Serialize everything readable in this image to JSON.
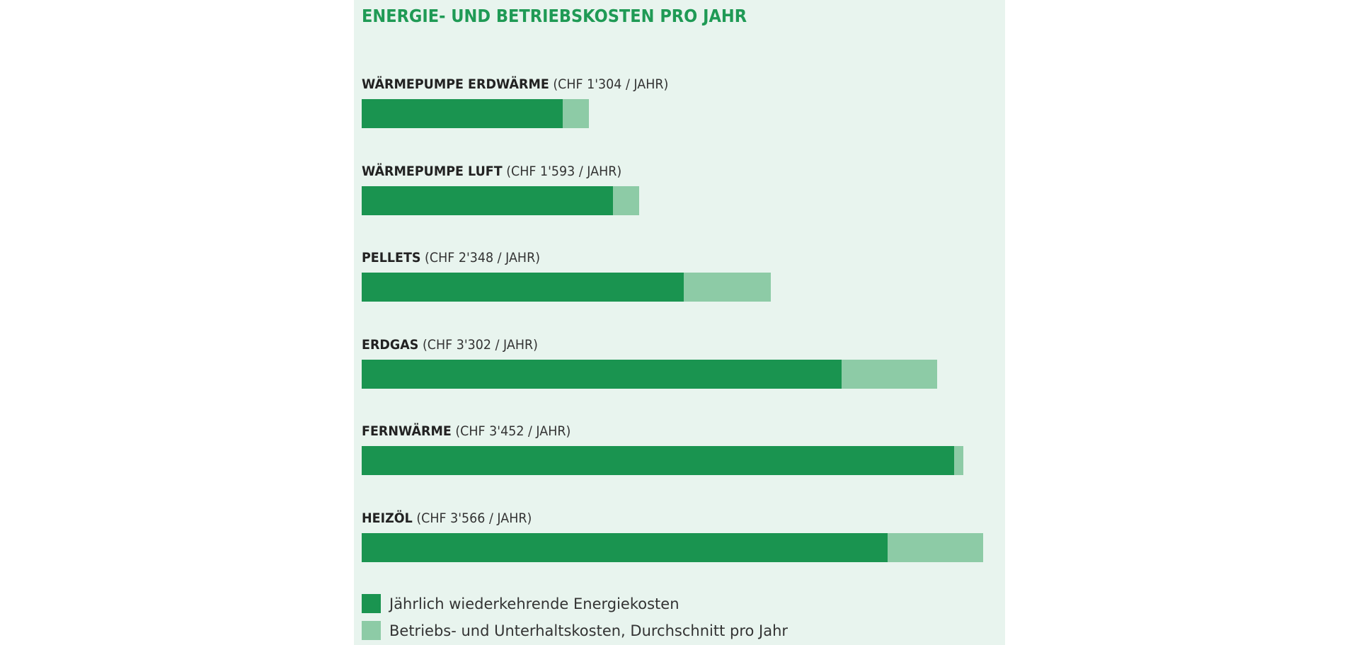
{
  "chart_data": {
    "type": "bar",
    "orientation": "horizontal",
    "stacked": true,
    "title": "ENERGIE- UND BETRIEBSKOSTEN PRO JAHR",
    "categories": [
      "WÄRMEPUMPE ERDWÄRME",
      "WÄRMEPUMPE LUFT",
      "PELLETS",
      "ERDGAS",
      "FERNWÄRME",
      "HEIZÖL"
    ],
    "totals_labels": [
      "(CHF 1'304 / JAHR)",
      "(CHF 1'593 / JAHR)",
      "(CHF 2'348 / JAHR)",
      "(CHF 3'302 / JAHR)",
      "(CHF 3'452 / JAHR)",
      "(CHF 3'566 / JAHR)"
    ],
    "series": [
      {
        "name": "Jährlich wiederkehrende Energiekosten",
        "color": "#1a9450",
        "values": [
          1153,
          1442,
          1847,
          2752,
          3401,
          3016
        ]
      },
      {
        "name": "Betriebs- und Unterhaltskosten, Durchschnitt pro Jahr",
        "color": "#8dcba6",
        "values": [
          151,
          151,
          501,
          550,
          51,
          550
        ]
      }
    ],
    "xlim": [
      0,
      3566
    ],
    "grid": false,
    "legend_position": "bottom-left"
  },
  "colors": {
    "title": "#1f9a55",
    "background": "#e8f4ee"
  }
}
